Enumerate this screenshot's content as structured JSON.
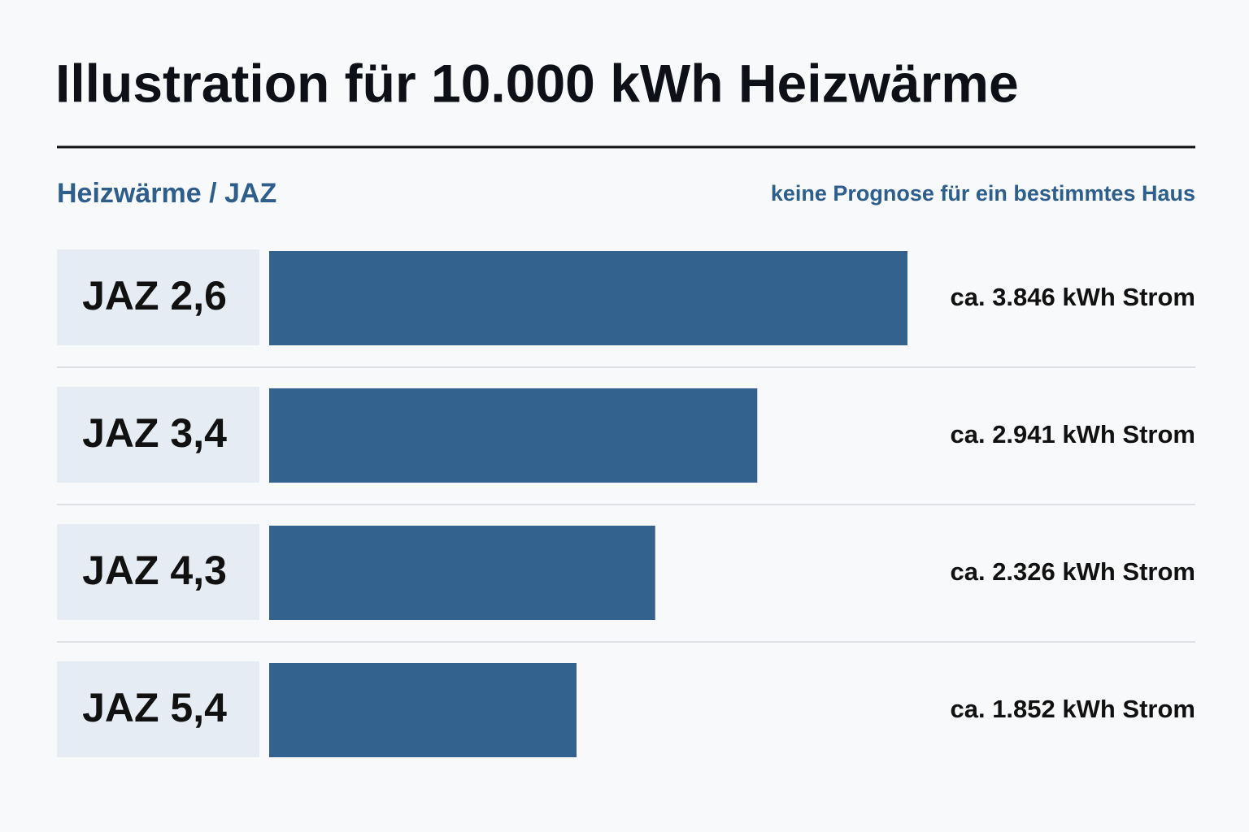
{
  "chart_data": {
    "type": "bar",
    "orientation": "horizontal",
    "title": "Illustration für 10.000 kWh Heizwärme",
    "subtitle": "Heizwärme / JAZ",
    "annotation": "keine Prognose für ein bestimmtes Haus",
    "categories": [
      "JAZ 2,6",
      "JAZ 3,4",
      "JAZ 4,3",
      "JAZ 5,4"
    ],
    "values": [
      3846,
      2941,
      2326,
      1852
    ],
    "value_labels": [
      "ca. 3.846 kWh Strom",
      "ca. 2.941 kWh Strom",
      "ca. 2.326 kWh Strom",
      "ca. 1.852 kWh Strom"
    ],
    "color": "#34628f"
  }
}
